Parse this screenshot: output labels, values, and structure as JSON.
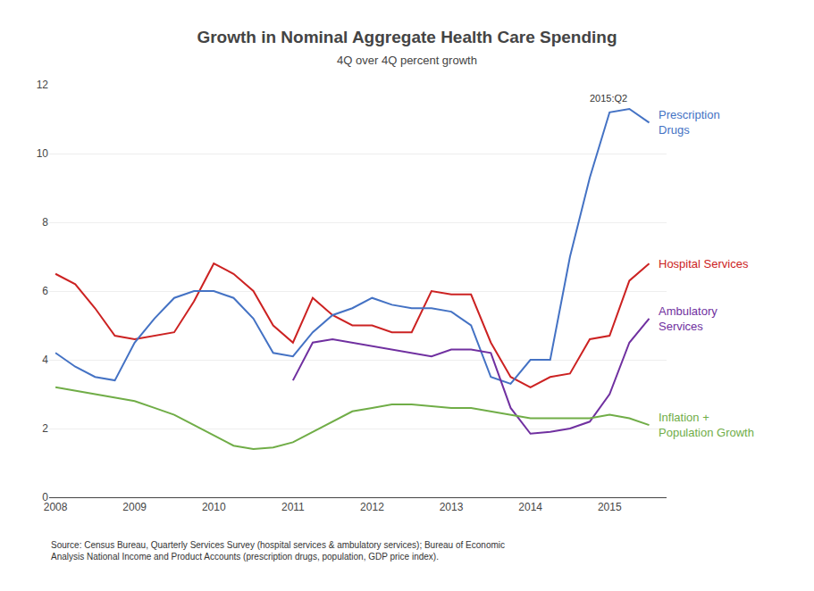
{
  "chart_data": {
    "type": "line",
    "title": "Growth in Nominal Aggregate Health Care Spending",
    "subtitle": "4Q over 4Q percent growth",
    "xlim": [
      2007.92,
      2015.72
    ],
    "xticks": [
      2008,
      2009,
      2010,
      2011,
      2012,
      2013,
      2014,
      2015
    ],
    "ylim": [
      0,
      12
    ],
    "yticks": [
      0,
      2,
      4,
      6,
      8,
      10,
      12
    ],
    "grid": "y",
    "series": [
      {
        "name": "Hospital Services",
        "color": "#cc2222",
        "x": [
          2008.0,
          2008.25,
          2008.5,
          2008.75,
          2009.0,
          2009.25,
          2009.5,
          2009.75,
          2010.0,
          2010.25,
          2010.5,
          2010.75,
          2011.0,
          2011.25,
          2011.5,
          2011.75,
          2012.0,
          2012.25,
          2012.5,
          2012.75,
          2013.0,
          2013.25,
          2013.5,
          2013.75,
          2014.0,
          2014.25,
          2014.5,
          2014.75,
          2015.0,
          2015.25,
          2015.5
        ],
        "values": [
          6.5,
          6.2,
          5.5,
          4.7,
          4.6,
          4.7,
          4.8,
          5.7,
          6.8,
          6.5,
          6.0,
          5.0,
          4.5,
          5.8,
          5.3,
          5.0,
          5.0,
          4.8,
          4.8,
          6.0,
          5.9,
          5.9,
          4.5,
          3.5,
          3.2,
          3.5,
          3.6,
          4.6,
          4.7,
          6.3,
          6.8
        ]
      },
      {
        "name": "Prescription\nDrugs",
        "color": "#4472c4",
        "x": [
          2008.0,
          2008.25,
          2008.5,
          2008.75,
          2009.0,
          2009.25,
          2009.5,
          2009.75,
          2010.0,
          2010.25,
          2010.5,
          2010.75,
          2011.0,
          2011.25,
          2011.5,
          2011.75,
          2012.0,
          2012.25,
          2012.5,
          2012.75,
          2013.0,
          2013.25,
          2013.5,
          2013.75,
          2014.0,
          2014.25,
          2014.5,
          2014.75,
          2015.0,
          2015.25,
          2015.5
        ],
        "values": [
          4.2,
          3.8,
          3.5,
          3.4,
          4.5,
          5.2,
          5.8,
          6.0,
          6.0,
          5.8,
          5.2,
          4.2,
          4.1,
          4.8,
          5.3,
          5.5,
          5.8,
          5.6,
          5.5,
          5.5,
          5.4,
          5.0,
          3.5,
          3.3,
          4.0,
          4.0,
          7.0,
          9.3,
          11.2,
          11.3,
          10.9
        ]
      },
      {
        "name": "Ambulatory\nServices",
        "color": "#7030a0",
        "x": [
          2011.0,
          2011.25,
          2011.5,
          2011.75,
          2012.0,
          2012.25,
          2012.5,
          2012.75,
          2013.0,
          2013.25,
          2013.5,
          2013.75,
          2014.0,
          2014.25,
          2014.5,
          2014.75,
          2015.0,
          2015.25,
          2015.5
        ],
        "values": [
          3.4,
          4.5,
          4.6,
          4.5,
          4.4,
          4.3,
          4.2,
          4.1,
          4.3,
          4.3,
          4.2,
          2.6,
          1.85,
          1.9,
          2.0,
          2.2,
          3.0,
          4.5,
          5.2
        ]
      },
      {
        "name": "Inflation +\nPopulation Growth",
        "color": "#70ad47",
        "x": [
          2008.0,
          2008.25,
          2008.5,
          2008.75,
          2009.0,
          2009.25,
          2009.5,
          2009.75,
          2010.0,
          2010.25,
          2010.5,
          2010.75,
          2011.0,
          2011.25,
          2011.5,
          2011.75,
          2012.0,
          2012.25,
          2012.5,
          2012.75,
          2013.0,
          2013.25,
          2013.5,
          2013.75,
          2014.0,
          2014.25,
          2014.5,
          2014.75,
          2015.0,
          2015.25,
          2015.5
        ],
        "values": [
          3.2,
          3.1,
          3.0,
          2.9,
          2.8,
          2.6,
          2.4,
          2.1,
          1.8,
          1.5,
          1.4,
          1.45,
          1.6,
          1.9,
          2.2,
          2.5,
          2.6,
          2.7,
          2.7,
          2.65,
          2.6,
          2.6,
          2.5,
          2.4,
          2.3,
          2.3,
          2.3,
          2.3,
          2.4,
          2.3,
          2.1
        ]
      }
    ],
    "annotations": [
      {
        "text": "2015:Q2",
        "x": 2015.25,
        "y": 11.3
      },
      {
        "text": "Source: Census Bureau, Quarterly Services Survey (hospital services & ambulatory services); Bureau of Economic\nAnalysis National Income and Product Accounts (prescription drugs, population, GDP price index)."
      }
    ]
  }
}
